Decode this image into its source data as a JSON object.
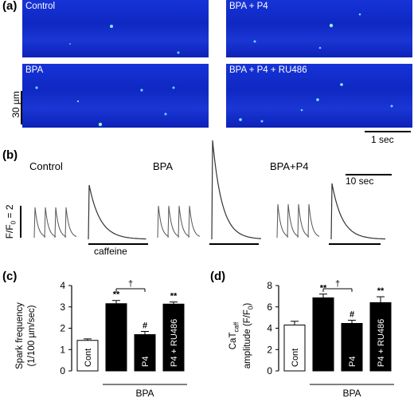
{
  "panel_a": {
    "label": "(a)",
    "images": [
      {
        "name": "control",
        "title": "Control"
      },
      {
        "name": "bpa-p4",
        "title": "BPA + P4"
      },
      {
        "name": "bpa",
        "title": "BPA"
      },
      {
        "name": "bpa-p4-ru486",
        "title": "BPA + P4 + RU486"
      }
    ],
    "y_scale": "30 µm",
    "x_scale": "1 sec"
  },
  "panel_b": {
    "label": "(b)",
    "titles": [
      "Control",
      "BPA",
      "BPA+P4"
    ],
    "scale_time": "10 sec",
    "y_scale_text": "F/F",
    "y_scale_sub": "0",
    "y_scale_value": " = 2",
    "caffeine_label": "caffeine"
  },
  "panel_c": {
    "label": "(c)",
    "ylabel_line1": "Spark frequency",
    "ylabel_line2": "(1/100 µm/sec)",
    "group_label": "BPA",
    "dagger": "†",
    "chart_data": {
      "type": "bar",
      "categories": [
        "Cont",
        "",
        "P4",
        "P4 + RU486"
      ],
      "values": [
        1.43,
        3.15,
        1.7,
        3.13
      ],
      "errors": [
        0.07,
        0.15,
        0.15,
        0.1
      ],
      "annotations": [
        "",
        "**",
        "#",
        "**"
      ],
      "fills": [
        "#ffffff",
        "#000000",
        "#000000",
        "#000000"
      ],
      "ylim": [
        0,
        4
      ],
      "yticks": [
        0,
        1,
        2,
        3,
        4
      ]
    }
  },
  "panel_d": {
    "label": "(d)",
    "ylabel_line1": "CaT",
    "ylabel_line1_sub": "caff",
    "ylabel_line2": "amplitude (F/F",
    "ylabel_line2_sub": "0",
    "ylabel_line2_end": ")",
    "group_label": "BPA",
    "dagger": "†",
    "chart_data": {
      "type": "bar",
      "categories": [
        "Cont",
        "",
        "P4",
        "P4 + RU486"
      ],
      "values": [
        4.3,
        6.85,
        4.45,
        6.4
      ],
      "errors": [
        0.35,
        0.35,
        0.3,
        0.55
      ],
      "annotations": [
        "",
        "**",
        "#",
        "**"
      ],
      "fills": [
        "#ffffff",
        "#000000",
        "#000000",
        "#000000"
      ],
      "ylim": [
        0,
        8
      ],
      "yticks": [
        0,
        2,
        4,
        6,
        8
      ]
    }
  }
}
